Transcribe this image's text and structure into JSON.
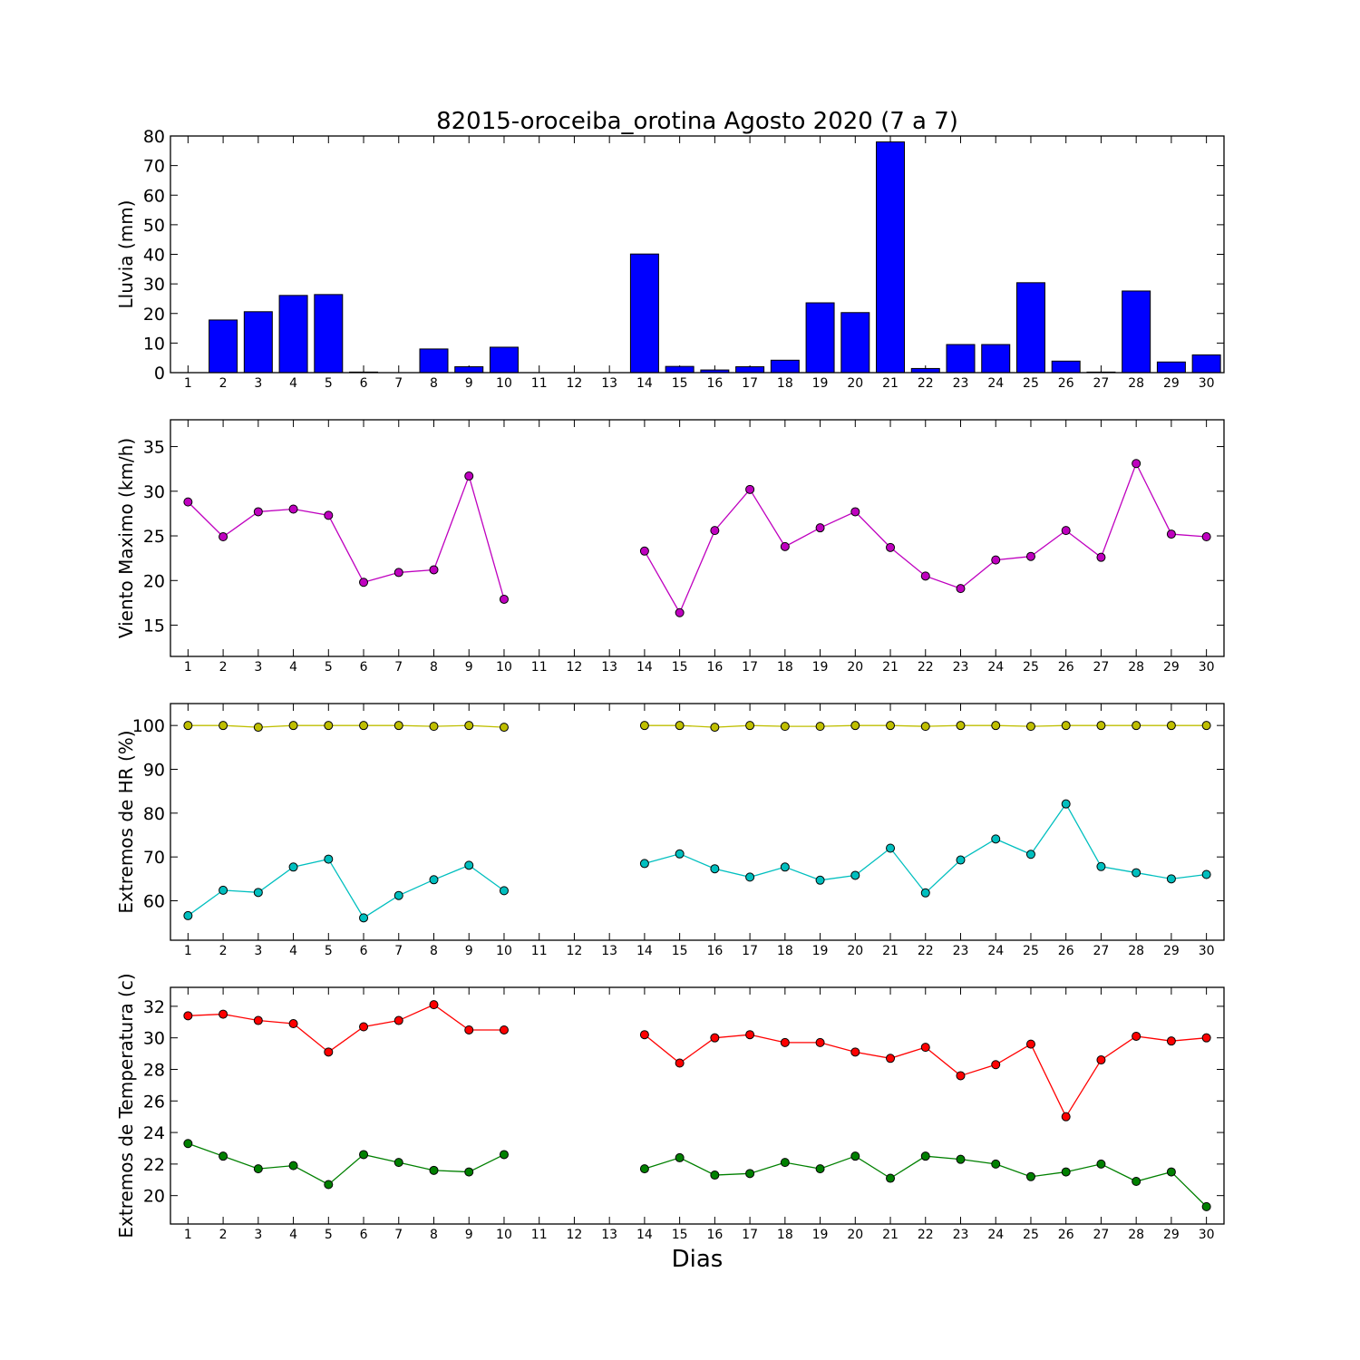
{
  "title": "82015-oroceiba_orotina Agosto 2020  (7 a 7)",
  "xlabel": "Dias",
  "chart_data": [
    {
      "type": "bar",
      "ylabel": "Lluvia (mm)",
      "ylim": [
        0,
        80
      ],
      "yticks": [
        0,
        10,
        20,
        30,
        40,
        50,
        60,
        70,
        80
      ],
      "xlim": [
        0.5,
        30.5
      ],
      "categories": [
        1,
        2,
        3,
        4,
        5,
        6,
        7,
        8,
        9,
        10,
        11,
        12,
        13,
        14,
        15,
        16,
        17,
        18,
        19,
        20,
        21,
        22,
        23,
        24,
        25,
        26,
        27,
        28,
        29,
        30
      ],
      "color": "#0000ff",
      "values": [
        0,
        17.8,
        20.6,
        26.1,
        26.4,
        0.2,
        0,
        8,
        2,
        8.6,
        0,
        0,
        0,
        40.1,
        2.1,
        0.9,
        2,
        4.2,
        23.6,
        20.3,
        78,
        1.4,
        9.5,
        9.5,
        30.4,
        3.9,
        0.2,
        27.6,
        3.6,
        6
      ]
    },
    {
      "type": "line",
      "ylabel": "Viento Maximo (km/h)",
      "ylim": [
        11.5,
        38
      ],
      "yticks": [
        15,
        20,
        25,
        30,
        35
      ],
      "xlim": [
        0.5,
        30.5
      ],
      "categories": [
        1,
        2,
        3,
        4,
        5,
        6,
        7,
        8,
        9,
        10,
        11,
        12,
        13,
        14,
        15,
        16,
        17,
        18,
        19,
        20,
        21,
        22,
        23,
        24,
        25,
        26,
        27,
        28,
        29,
        30
      ],
      "series": [
        {
          "color": "#bf00bf",
          "values": [
            28.8,
            24.9,
            27.7,
            28,
            27.3,
            19.8,
            20.9,
            21.2,
            31.7,
            17.9,
            null,
            null,
            null,
            23.3,
            16.4,
            25.6,
            30.2,
            23.8,
            25.9,
            27.7,
            23.7,
            20.5,
            19.1,
            22.3,
            22.7,
            25.6,
            22.6,
            33.1,
            25.2,
            24.9
          ]
        }
      ]
    },
    {
      "type": "line",
      "ylabel": "Extremos de HR (%)",
      "ylim": [
        51,
        105
      ],
      "yticks": [
        60,
        70,
        80,
        90,
        100
      ],
      "xlim": [
        0.5,
        30.5
      ],
      "categories": [
        1,
        2,
        3,
        4,
        5,
        6,
        7,
        8,
        9,
        10,
        11,
        12,
        13,
        14,
        15,
        16,
        17,
        18,
        19,
        20,
        21,
        22,
        23,
        24,
        25,
        26,
        27,
        28,
        29,
        30
      ],
      "series": [
        {
          "color": "#bfbf00",
          "values": [
            100,
            100,
            99.6,
            100,
            100,
            100,
            100,
            99.8,
            100,
            99.6,
            null,
            null,
            null,
            100,
            100,
            99.6,
            100,
            99.8,
            99.8,
            100,
            100,
            99.8,
            100,
            100,
            99.8,
            100,
            100,
            100,
            100,
            100
          ]
        },
        {
          "color": "#00bfbf",
          "values": [
            56.6,
            62.4,
            61.9,
            67.7,
            69.5,
            56.1,
            61.2,
            64.8,
            68.1,
            62.3,
            null,
            null,
            null,
            68.5,
            70.7,
            67.3,
            65.4,
            67.7,
            64.7,
            65.8,
            72,
            61.8,
            69.3,
            74.1,
            70.6,
            82.1,
            67.8,
            66.4,
            65,
            66
          ]
        }
      ]
    },
    {
      "type": "line",
      "ylabel": "Extremos de Temperatura (c)",
      "ylim": [
        18.2,
        33.2
      ],
      "yticks": [
        20,
        22,
        24,
        26,
        28,
        30,
        32
      ],
      "xlim": [
        0.5,
        30.5
      ],
      "categories": [
        1,
        2,
        3,
        4,
        5,
        6,
        7,
        8,
        9,
        10,
        11,
        12,
        13,
        14,
        15,
        16,
        17,
        18,
        19,
        20,
        21,
        22,
        23,
        24,
        25,
        26,
        27,
        28,
        29,
        30
      ],
      "series": [
        {
          "color": "#ff0000",
          "values": [
            31.4,
            31.5,
            31.1,
            30.9,
            29.1,
            30.7,
            31.1,
            32.1,
            30.5,
            30.5,
            null,
            null,
            null,
            30.2,
            28.4,
            30,
            30.2,
            29.7,
            29.7,
            29.1,
            28.7,
            29.4,
            27.6,
            28.3,
            29.6,
            25,
            28.6,
            30.1,
            29.8,
            30
          ]
        },
        {
          "color": "#008000",
          "values": [
            23.3,
            22.5,
            21.7,
            21.9,
            20.7,
            22.6,
            22.1,
            21.6,
            21.5,
            22.6,
            null,
            null,
            null,
            21.7,
            22.4,
            21.3,
            21.4,
            22.1,
            21.7,
            22.5,
            21.1,
            22.5,
            22.3,
            22,
            21.2,
            21.5,
            22,
            20.9,
            21.5,
            19.3
          ]
        }
      ]
    }
  ]
}
